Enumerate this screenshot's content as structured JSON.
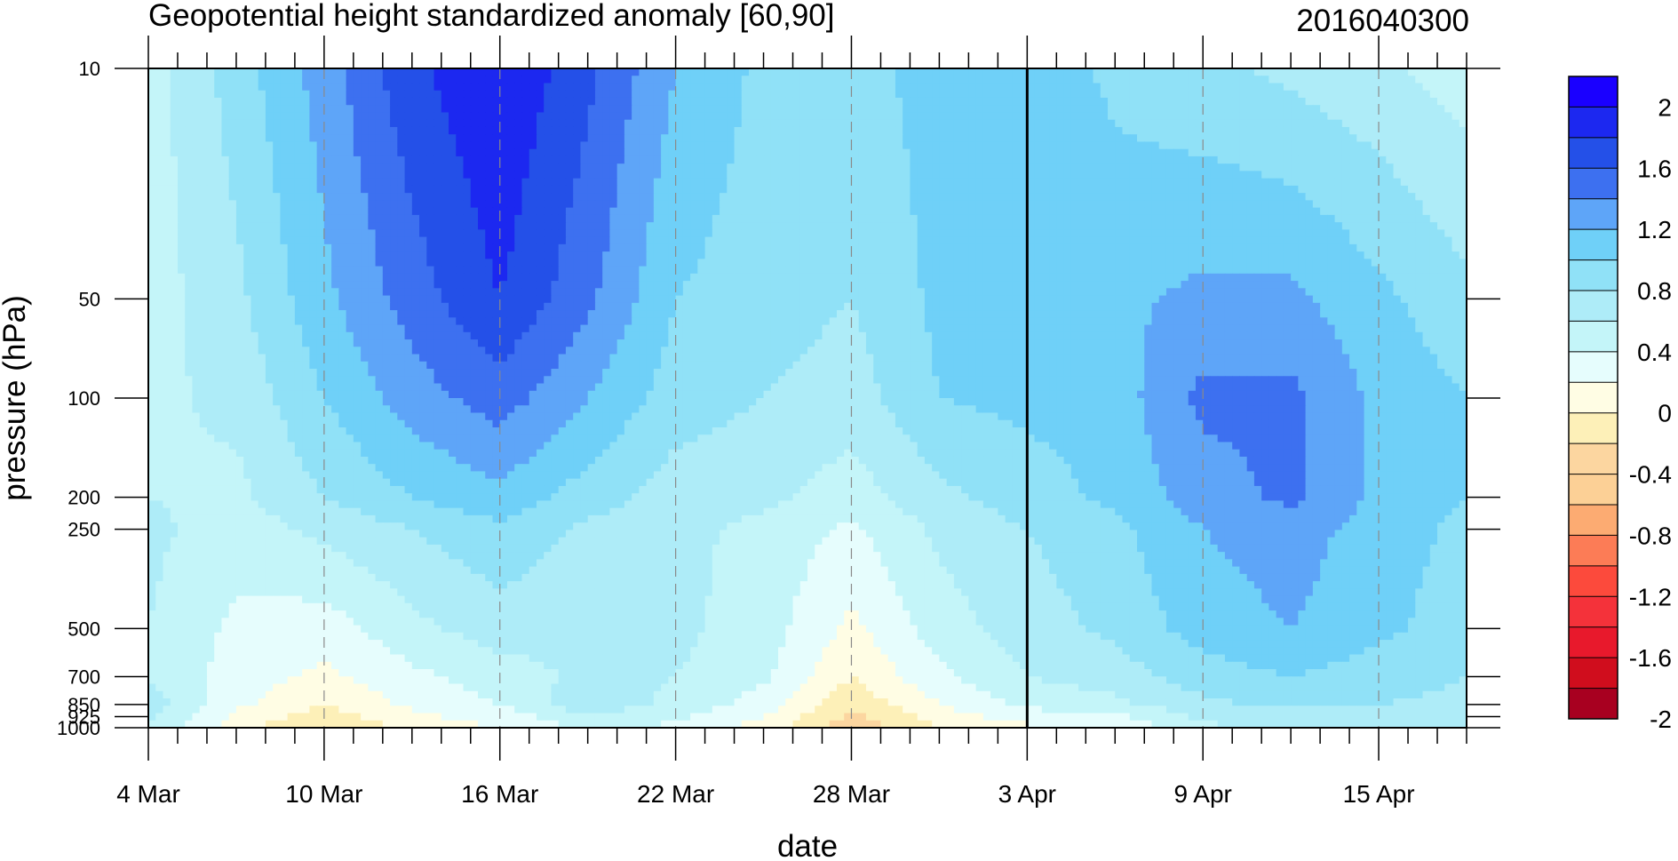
{
  "chart_data": {
    "type": "heatmap",
    "title": "Geopotential height standardized anomaly [60,90]",
    "right_title": "2016040300",
    "xlabel": "date",
    "ylabel": "pressure (hPa)",
    "x_tick_labels": [
      "4 Mar",
      "10 Mar",
      "16 Mar",
      "22 Mar",
      "28 Mar",
      "3 Apr",
      "9 Apr",
      "15 Apr"
    ],
    "x_tick_days": [
      0,
      6,
      12,
      18,
      24,
      30,
      36,
      42
    ],
    "x_range_days": [
      0,
      45
    ],
    "reference_line_day": 30,
    "y_tick_labels": [
      "10",
      "50",
      "100",
      "200",
      "250",
      "500",
      "700",
      "850",
      "925",
      "1000"
    ],
    "levels": [
      10,
      50,
      100,
      200,
      250,
      500,
      700,
      850,
      925,
      1000
    ],
    "y_scale": "log",
    "y_inverted": true,
    "grid": "dashed vertical lines at labelled dates",
    "contour_levels": [
      -2.2,
      -2,
      -1.8,
      -1.6,
      -1.4,
      -1.2,
      -1,
      -0.8,
      -0.6,
      -0.4,
      -0.2,
      0,
      0.2,
      0.4,
      0.6,
      0.8,
      1,
      1.2,
      1.4,
      1.6,
      1.8,
      2,
      2.2
    ],
    "colorbar_colors": [
      "#1a00ff",
      "#1c28f0",
      "#2450e8",
      "#3d70f0",
      "#5ea5f8",
      "#6fd0f8",
      "#90e1f7",
      "#aeecf8",
      "#c4f5f9",
      "#e6fdfd",
      "#fffde4",
      "#fdf0b8",
      "#fcd6a0",
      "#fcd096",
      "#fcab72",
      "#fc7c56",
      "#fc4a3c",
      "#f4323a",
      "#e8192c",
      "#d00d1d",
      "#a80020"
    ],
    "colorbar_labels": [
      "2",
      "1.6",
      "1.2",
      "0.8",
      "0.4",
      "0",
      "-0.4",
      "-0.8",
      "-1.2",
      "-1.6",
      "-2"
    ],
    "days": [
      0,
      3,
      6,
      9,
      12,
      15,
      18,
      21,
      24,
      27,
      30,
      33,
      36,
      39,
      42,
      45
    ],
    "values": [
      [
        0.3,
        0.7,
        1.1,
        1.55,
        1.8,
        1.45,
        1.0,
        0.75,
        0.7,
        0.9,
        0.95,
        0.75,
        0.65,
        0.55,
        0.45,
        0.3
      ],
      [
        0.3,
        0.55,
        0.95,
        1.3,
        1.6,
        1.25,
        0.8,
        0.7,
        0.6,
        0.85,
        0.95,
        0.95,
        1.05,
        1.05,
        0.85,
        0.65
      ],
      [
        0.35,
        0.45,
        0.8,
        1.1,
        1.3,
        1.0,
        0.7,
        0.6,
        0.5,
        0.8,
        0.85,
        0.9,
        1.25,
        1.25,
        0.95,
        0.8
      ],
      [
        0.4,
        0.35,
        0.6,
        0.8,
        0.95,
        0.7,
        0.5,
        0.45,
        0.3,
        0.55,
        0.7,
        0.85,
        1.1,
        1.25,
        0.95,
        0.8
      ],
      [
        0.45,
        0.3,
        0.45,
        0.6,
        0.75,
        0.55,
        0.45,
        0.35,
        0.15,
        0.45,
        0.6,
        0.75,
        1.0,
        1.1,
        0.9,
        0.75
      ],
      [
        0.4,
        0.15,
        0.1,
        0.35,
        0.5,
        0.45,
        0.45,
        0.3,
        -0.05,
        0.3,
        0.5,
        0.65,
        0.9,
        1.0,
        0.85,
        0.7
      ],
      [
        0.4,
        0.1,
        -0.05,
        0.15,
        0.3,
        0.45,
        0.4,
        0.25,
        -0.2,
        0.15,
        0.4,
        0.5,
        0.7,
        0.8,
        0.7,
        0.6
      ],
      [
        0.5,
        0.05,
        -0.2,
        0.05,
        0.2,
        0.55,
        0.35,
        0.1,
        -0.35,
        0.0,
        0.25,
        0.35,
        0.55,
        0.65,
        0.6,
        0.55
      ],
      [
        0.45,
        -0.05,
        -0.3,
        -0.05,
        0.1,
        0.35,
        0.25,
        0.0,
        -0.45,
        -0.1,
        0.1,
        0.15,
        0.45,
        0.5,
        0.45,
        0.4
      ],
      [
        0.4,
        -0.1,
        -0.45,
        -0.15,
        0.0,
        0.25,
        0.15,
        -0.1,
        -0.55,
        -0.2,
        -0.05,
        0.0,
        0.35,
        0.45,
        0.4,
        0.4
      ]
    ]
  }
}
